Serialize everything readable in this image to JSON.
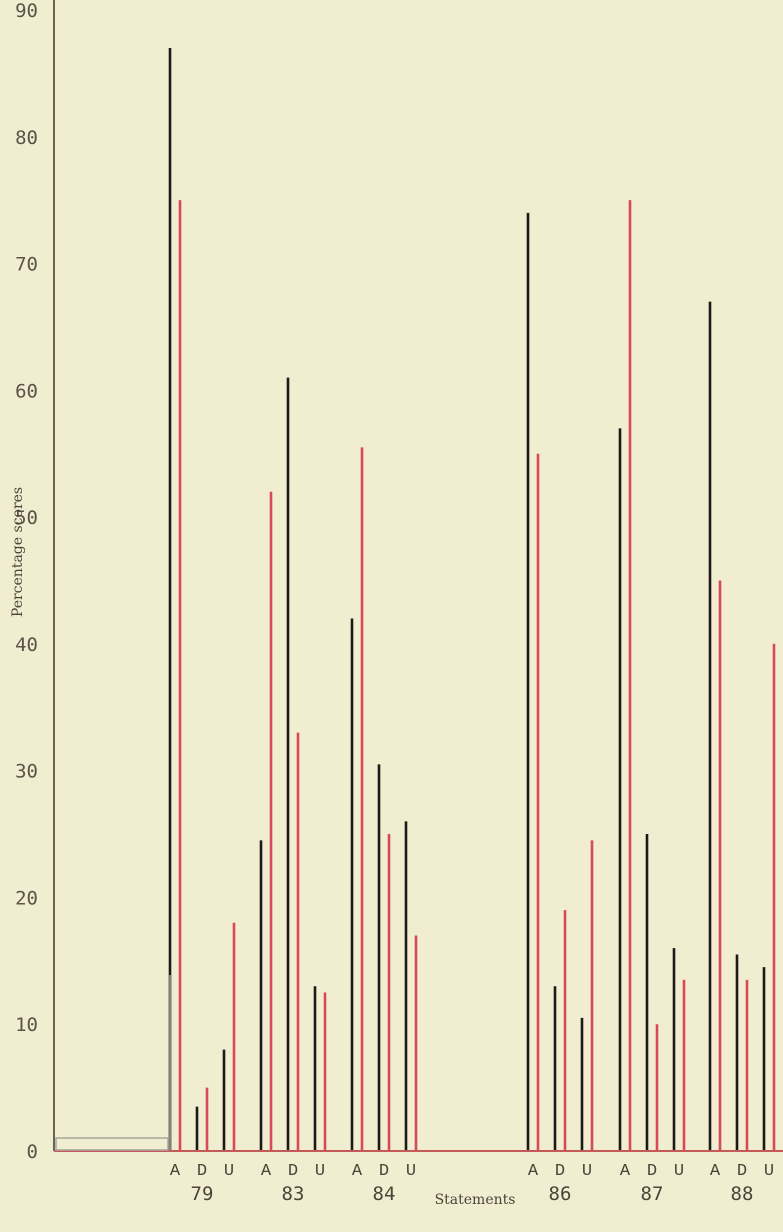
{
  "chart_data": {
    "type": "bar",
    "ylabel": "Percentage scores",
    "xlabel": "Statements",
    "ylim": [
      0,
      90
    ],
    "yticks": [
      0,
      10,
      20,
      30,
      40,
      50,
      60,
      70,
      80,
      90
    ],
    "groups": [
      {
        "statement": "79",
        "categories": [
          "A",
          "D",
          "U"
        ],
        "black": [
          87,
          3.5,
          8
        ],
        "red": [
          75,
          5,
          18
        ]
      },
      {
        "statement": "83",
        "categories": [
          "A",
          "D",
          "U"
        ],
        "black": [
          24.5,
          61,
          13
        ],
        "red": [
          52,
          33,
          12.5
        ]
      },
      {
        "statement": "84",
        "categories": [
          "A",
          "D",
          "U"
        ],
        "black": [
          42,
          30.5,
          26
        ],
        "red": [
          55.5,
          25,
          17
        ]
      },
      {
        "statement": "86",
        "categories": [
          "A",
          "D",
          "U"
        ],
        "black": [
          74,
          13,
          10.5
        ],
        "red": [
          55,
          19,
          24.5
        ]
      },
      {
        "statement": "87",
        "categories": [
          "A",
          "D",
          "U"
        ],
        "black": [
          57,
          25,
          16
        ],
        "red": [
          75,
          10,
          13.5
        ]
      },
      {
        "statement": "88",
        "categories": [
          "A",
          "D",
          "U"
        ],
        "black": [
          67,
          15.5,
          14.5
        ],
        "red": [
          45,
          13.5,
          40
        ]
      }
    ],
    "colors": {
      "black": "#1c1a17",
      "red": "#d9485a",
      "axis": "#c45a5a"
    },
    "grid": false,
    "legend": "none"
  }
}
